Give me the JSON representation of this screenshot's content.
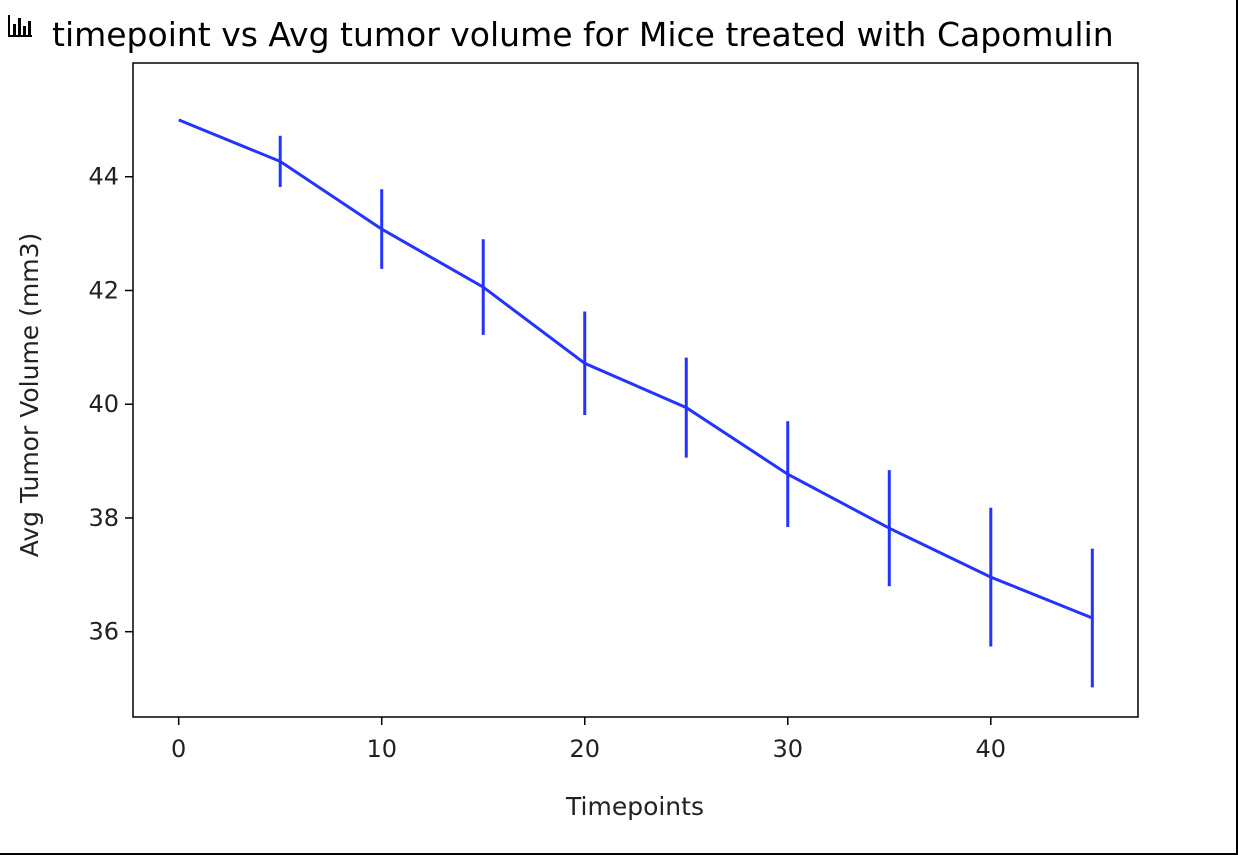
{
  "chart_data": {
    "type": "line",
    "title": "timepoint vs Avg tumor volume for Mice treated with Capomulin",
    "xlabel": "Timepoints",
    "ylabel": "Avg Tumor Volume (mm3)",
    "x": [
      0,
      5,
      10,
      15,
      20,
      25,
      30,
      35,
      40,
      45
    ],
    "series": [
      {
        "values": [
          45.0,
          44.27,
          43.08,
          42.06,
          40.72,
          39.94,
          38.77,
          37.82,
          36.96,
          36.24
        ],
        "error": [
          0.0,
          0.45,
          0.7,
          0.84,
          0.91,
          0.88,
          0.93,
          1.02,
          1.22,
          1.22
        ],
        "color": "#2433ff"
      }
    ],
    "xlim": [
      -2.25,
      47.25
    ],
    "ylim": [
      34.5,
      46.0
    ],
    "xticks": [
      0,
      10,
      20,
      30,
      40
    ],
    "yticks": [
      36,
      38,
      40,
      42,
      44
    ],
    "grid": false,
    "legend": "none"
  },
  "icon": "bar-chart-icon"
}
